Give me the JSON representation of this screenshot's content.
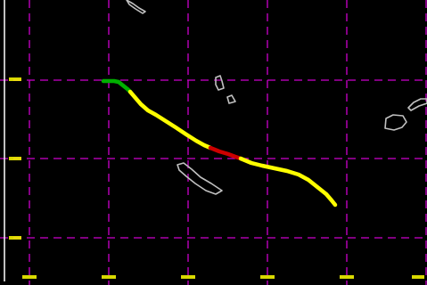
{
  "map": {
    "background_color": "#000000",
    "grid_color": "#cc00cc",
    "label_color": "#ffff00",
    "frame_color": "#ffffff",
    "land_outline_color": "#c0c0c0",
    "lat_labels": [
      "",
      "",
      ""
    ],
    "lon_labels": [
      "",
      "",
      "",
      "",
      "",
      ""
    ],
    "track": {
      "intensity_colors": {
        "green": "#00b000",
        "yellow": "#ffff00",
        "red": "#cc0000"
      },
      "segment_order": [
        "green",
        "yellow",
        "red",
        "yellow"
      ]
    },
    "islands": [
      "island-top",
      "island-small-a",
      "island-small-b",
      "island-elongated",
      "island-east-a",
      "island-east-b"
    ]
  }
}
